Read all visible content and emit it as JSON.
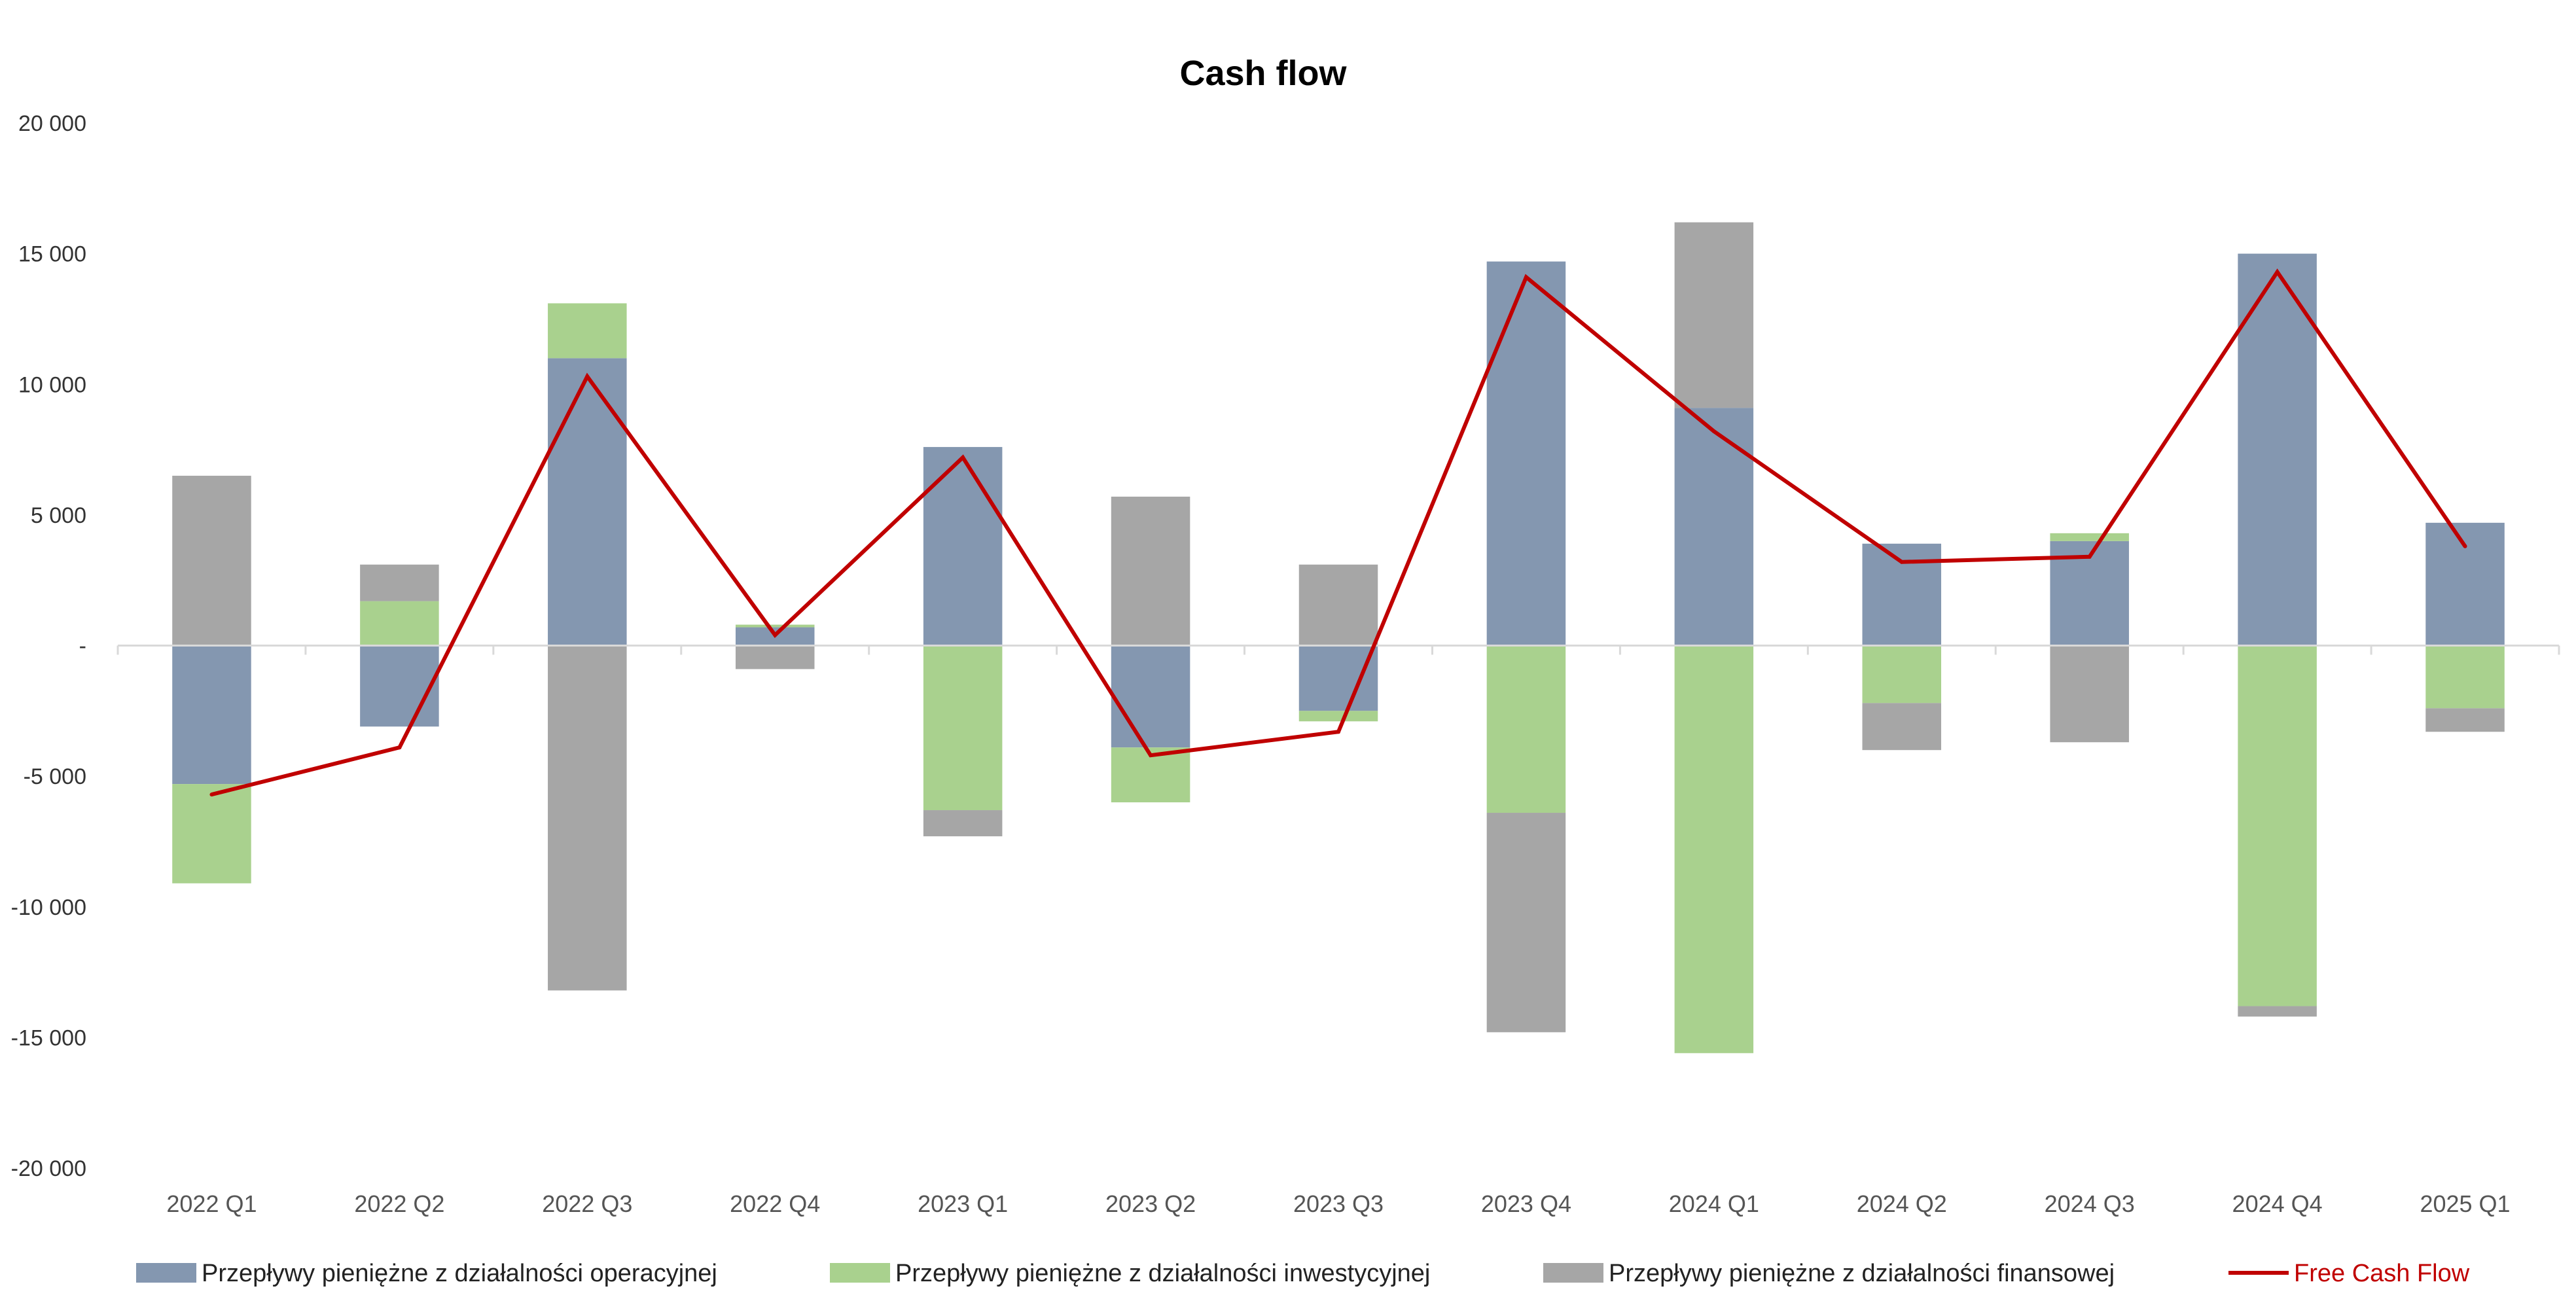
{
  "chart_data": {
    "type": "bar",
    "stacked": true,
    "title": "Cash flow",
    "xlabel": "",
    "ylabel": "",
    "ylim": [
      -20000,
      20000
    ],
    "yticks": [
      20000,
      15000,
      10000,
      5000,
      0,
      -5000,
      -10000,
      -15000,
      -20000
    ],
    "ytick_labels": [
      "20 000",
      "15 000",
      "10 000",
      "5 000",
      "-",
      "-5 000",
      "-10 000",
      "-15 000",
      "-20 000"
    ],
    "grid": false,
    "legend_position": "bottom",
    "categories": [
      "2022 Q1",
      "2022 Q2",
      "2022 Q3",
      "2022 Q4",
      "2023 Q1",
      "2023 Q2",
      "2023 Q3",
      "2023 Q4",
      "2024 Q1",
      "2024 Q2",
      "2024 Q3",
      "2024 Q4",
      "2025 Q1"
    ],
    "series": [
      {
        "name": "Przepływy pieniężne z działalności operacyjnej",
        "kind": "bar",
        "color": "#8497b0",
        "values": [
          -5300,
          -3100,
          11000,
          700,
          7600,
          -3900,
          -2500,
          14700,
          9100,
          3900,
          4000,
          15000,
          4700
        ]
      },
      {
        "name": "Przepływy pieniężne z działalności inwestycyjnej",
        "kind": "bar",
        "color": "#a9d18e",
        "values": [
          -3800,
          1700,
          2100,
          100,
          -6300,
          -2100,
          -400,
          -6400,
          -15600,
          -2200,
          300,
          -13800,
          -2400
        ]
      },
      {
        "name": "Przepływy pieniężne z działalności finansowej",
        "kind": "bar",
        "color": "#a6a6a6",
        "values": [
          6500,
          1400,
          -13200,
          -900,
          -1000,
          5700,
          3100,
          -8400,
          7100,
          -1800,
          -3700,
          -400,
          -900
        ]
      },
      {
        "name": "Free Cash Flow",
        "kind": "line",
        "color": "#c00000",
        "values": [
          -5700,
          -3900,
          10300,
          400,
          7200,
          -4200,
          -3300,
          14100,
          8200,
          3200,
          3400,
          14300,
          3800
        ]
      }
    ]
  }
}
